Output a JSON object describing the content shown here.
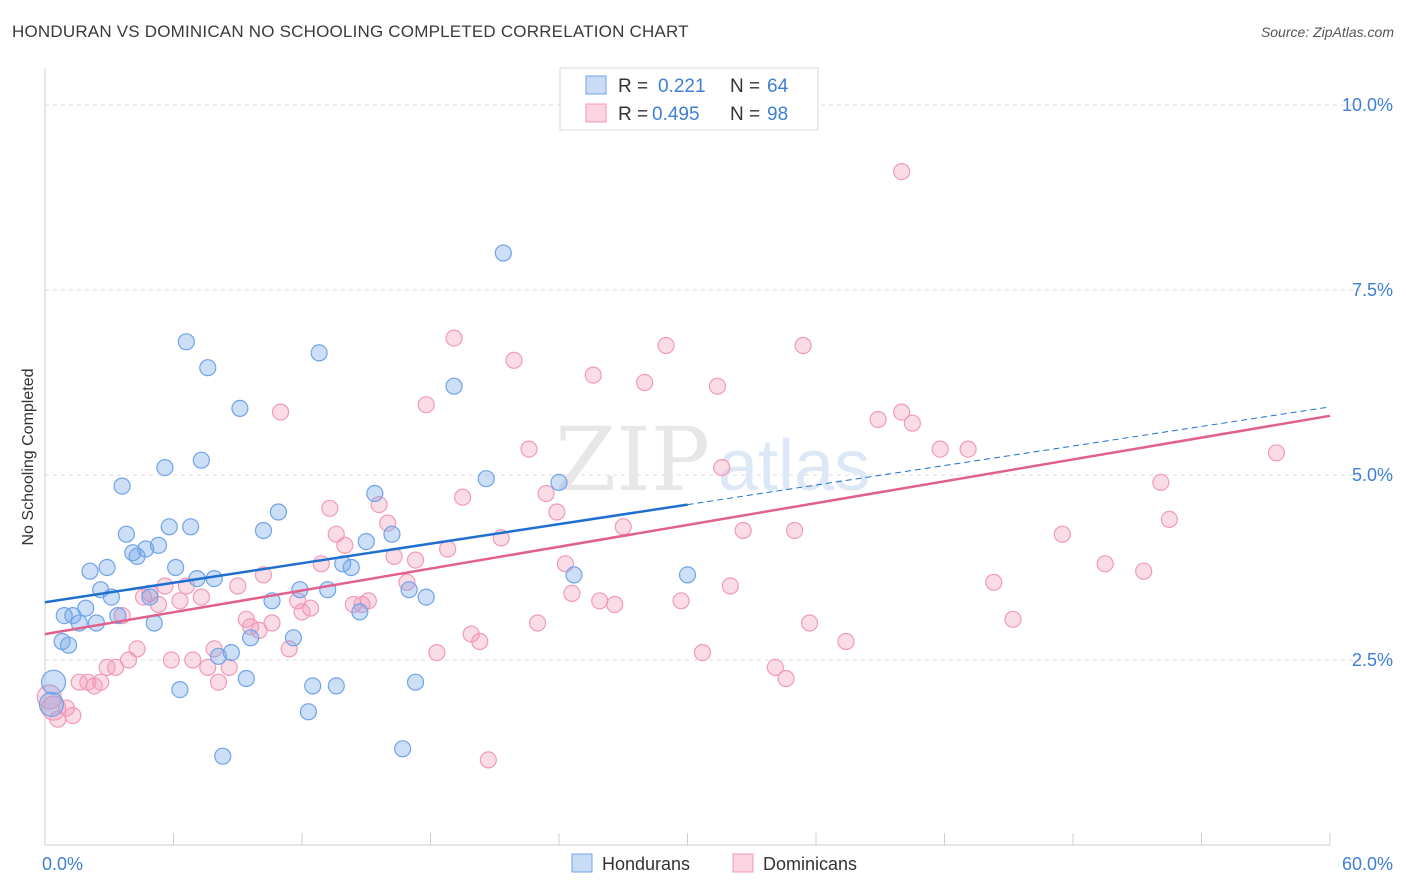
{
  "header": {
    "title": "HONDURAN VS DOMINICAN NO SCHOOLING COMPLETED CORRELATION CHART",
    "source": "Source: ZipAtlas.com"
  },
  "colors": {
    "blue": "#6fa3e8",
    "blue_line": "#1f6fd1",
    "pink": "#f19ab8",
    "pink_line": "#e0608e",
    "axis_text": "#3d7fd6"
  },
  "chart_data": {
    "type": "scatter",
    "title": "HONDURAN VS DOMINICAN NO SCHOOLING COMPLETED CORRELATION CHART",
    "xlabel": "",
    "ylabel": "No Schooling Completed",
    "xlim": [
      0,
      60
    ],
    "ylim": [
      0,
      10.5
    ],
    "x_tick_labels": [
      "0.0%",
      "60.0%"
    ],
    "y_ticks": [
      2.5,
      5.0,
      7.5,
      10.0
    ],
    "y_tick_labels": [
      "2.5%",
      "5.0%",
      "7.5%",
      "10.0%"
    ],
    "watermark": "ZIPatlas",
    "legend": [
      {
        "label": "R =",
        "r": "0.221",
        "n_label": "N =",
        "n": "64"
      },
      {
        "label": "R =",
        "r": "0.495",
        "n_label": "N =",
        "n": "98"
      }
    ],
    "bottom_legend": [
      "Hondurans",
      "Dominicans"
    ],
    "series": [
      {
        "name": "Hondurans",
        "trend": {
          "x0": 0,
          "y0": 3.28,
          "x1": 30,
          "y1": 4.6,
          "dash_x1": 60,
          "dash_y1": 5.92
        },
        "points": [
          [
            0.3,
            1.9
          ],
          [
            0.4,
            2.2
          ],
          [
            0.8,
            2.75
          ],
          [
            0.9,
            3.1
          ],
          [
            1.1,
            2.7
          ],
          [
            1.3,
            3.1
          ],
          [
            1.6,
            3.0
          ],
          [
            1.9,
            3.2
          ],
          [
            2.1,
            3.7
          ],
          [
            2.4,
            3.0
          ],
          [
            2.6,
            3.45
          ],
          [
            2.9,
            3.75
          ],
          [
            3.1,
            3.35
          ],
          [
            3.4,
            3.1
          ],
          [
            3.6,
            4.85
          ],
          [
            3.8,
            4.2
          ],
          [
            4.1,
            3.95
          ],
          [
            4.3,
            3.9
          ],
          [
            4.7,
            4.0
          ],
          [
            4.9,
            3.35
          ],
          [
            5.1,
            3.0
          ],
          [
            5.3,
            4.05
          ],
          [
            5.6,
            5.1
          ],
          [
            5.8,
            4.3
          ],
          [
            6.1,
            3.75
          ],
          [
            6.3,
            2.1
          ],
          [
            6.6,
            6.8
          ],
          [
            6.8,
            4.3
          ],
          [
            7.1,
            3.6
          ],
          [
            7.3,
            5.2
          ],
          [
            7.6,
            6.45
          ],
          [
            7.9,
            3.6
          ],
          [
            8.1,
            2.55
          ],
          [
            8.3,
            1.2
          ],
          [
            8.7,
            2.6
          ],
          [
            9.1,
            5.9
          ],
          [
            9.4,
            2.25
          ],
          [
            9.6,
            2.8
          ],
          [
            10.2,
            4.25
          ],
          [
            10.6,
            3.3
          ],
          [
            10.9,
            4.5
          ],
          [
            11.6,
            2.8
          ],
          [
            11.9,
            3.45
          ],
          [
            12.3,
            1.8
          ],
          [
            12.5,
            2.15
          ],
          [
            12.8,
            6.65
          ],
          [
            13.2,
            3.45
          ],
          [
            13.6,
            2.15
          ],
          [
            13.9,
            3.8
          ],
          [
            14.3,
            3.75
          ],
          [
            14.7,
            3.15
          ],
          [
            15.0,
            4.1
          ],
          [
            15.4,
            4.75
          ],
          [
            16.2,
            4.2
          ],
          [
            16.7,
            1.3
          ],
          [
            17.0,
            3.45
          ],
          [
            17.3,
            2.2
          ],
          [
            17.8,
            3.35
          ],
          [
            19.1,
            6.2
          ],
          [
            20.6,
            4.95
          ],
          [
            21.4,
            8.0
          ],
          [
            24.0,
            4.9
          ],
          [
            24.7,
            3.65
          ],
          [
            30.0,
            3.65
          ]
        ]
      },
      {
        "name": "Dominicans",
        "trend": {
          "x0": 0,
          "y0": 2.85,
          "x1": 60,
          "y1": 5.8
        },
        "points": [
          [
            0.2,
            2.0
          ],
          [
            0.4,
            1.85
          ],
          [
            0.6,
            1.7
          ],
          [
            1.0,
            1.85
          ],
          [
            1.3,
            1.75
          ],
          [
            1.6,
            2.2
          ],
          [
            2.0,
            2.2
          ],
          [
            2.3,
            2.15
          ],
          [
            2.6,
            2.2
          ],
          [
            2.9,
            2.4
          ],
          [
            3.3,
            2.4
          ],
          [
            3.6,
            3.1
          ],
          [
            3.9,
            2.5
          ],
          [
            4.3,
            2.65
          ],
          [
            4.6,
            3.35
          ],
          [
            4.9,
            3.4
          ],
          [
            5.3,
            3.25
          ],
          [
            5.6,
            3.5
          ],
          [
            5.9,
            2.5
          ],
          [
            6.3,
            3.3
          ],
          [
            6.6,
            3.5
          ],
          [
            6.9,
            2.5
          ],
          [
            7.3,
            3.35
          ],
          [
            7.6,
            2.4
          ],
          [
            7.9,
            2.65
          ],
          [
            8.1,
            2.2
          ],
          [
            8.6,
            2.4
          ],
          [
            9.0,
            3.5
          ],
          [
            9.4,
            3.05
          ],
          [
            9.6,
            2.95
          ],
          [
            10.0,
            2.9
          ],
          [
            10.2,
            3.65
          ],
          [
            10.6,
            3.0
          ],
          [
            11.0,
            5.85
          ],
          [
            11.4,
            2.65
          ],
          [
            11.8,
            3.3
          ],
          [
            12.0,
            3.15
          ],
          [
            12.4,
            3.2
          ],
          [
            12.9,
            3.8
          ],
          [
            13.3,
            4.55
          ],
          [
            13.6,
            4.2
          ],
          [
            14.0,
            4.05
          ],
          [
            14.4,
            3.25
          ],
          [
            14.8,
            3.25
          ],
          [
            15.1,
            3.3
          ],
          [
            15.6,
            4.6
          ],
          [
            16.0,
            4.35
          ],
          [
            16.3,
            3.9
          ],
          [
            16.9,
            3.55
          ],
          [
            17.3,
            3.85
          ],
          [
            17.8,
            5.95
          ],
          [
            18.3,
            2.6
          ],
          [
            18.8,
            4.0
          ],
          [
            19.1,
            6.85
          ],
          [
            19.5,
            4.7
          ],
          [
            19.9,
            2.85
          ],
          [
            20.3,
            2.75
          ],
          [
            20.7,
            1.15
          ],
          [
            21.3,
            4.15
          ],
          [
            21.9,
            6.55
          ],
          [
            22.6,
            5.35
          ],
          [
            23.0,
            3.0
          ],
          [
            23.4,
            4.75
          ],
          [
            23.9,
            4.5
          ],
          [
            24.3,
            3.8
          ],
          [
            24.6,
            3.4
          ],
          [
            25.6,
            6.35
          ],
          [
            25.9,
            3.3
          ],
          [
            26.6,
            3.25
          ],
          [
            27.0,
            4.3
          ],
          [
            28.0,
            6.25
          ],
          [
            29.0,
            6.75
          ],
          [
            29.7,
            3.3
          ],
          [
            30.7,
            2.6
          ],
          [
            31.4,
            6.2
          ],
          [
            31.6,
            5.1
          ],
          [
            32.0,
            3.5
          ],
          [
            32.6,
            4.25
          ],
          [
            34.1,
            2.4
          ],
          [
            34.6,
            2.25
          ],
          [
            35.0,
            4.25
          ],
          [
            35.4,
            6.75
          ],
          [
            35.7,
            3.0
          ],
          [
            37.4,
            2.75
          ],
          [
            38.9,
            5.75
          ],
          [
            40.0,
            5.85
          ],
          [
            40.5,
            5.7
          ],
          [
            41.8,
            5.35
          ],
          [
            43.1,
            5.35
          ],
          [
            44.3,
            3.55
          ],
          [
            45.2,
            3.05
          ],
          [
            47.5,
            4.2
          ],
          [
            49.5,
            3.8
          ],
          [
            51.3,
            3.7
          ],
          [
            52.1,
            4.9
          ],
          [
            52.5,
            4.4
          ],
          [
            57.5,
            5.3
          ],
          [
            40.0,
            9.1
          ]
        ]
      }
    ]
  }
}
